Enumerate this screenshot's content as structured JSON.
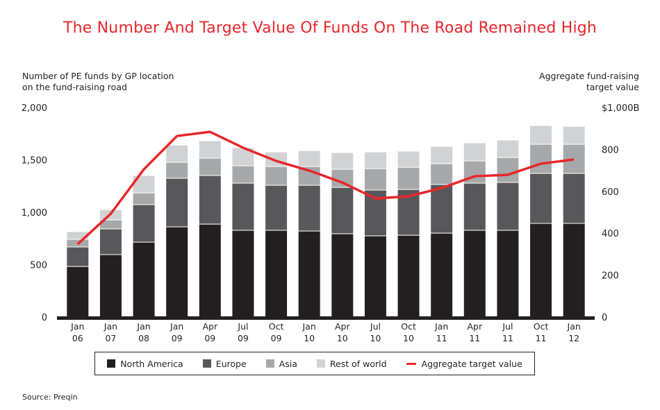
{
  "title": "The Number And Target Value Of Funds On The Road Remained High",
  "source": "Source: Preqin",
  "chart_data": {
    "type": "bar",
    "stacked": true,
    "title": "The Number And Target Value Of Funds On The Road Remained High",
    "ylabel_left_lines": [
      "Number of PE funds by GP location",
      "on the fund-raising road"
    ],
    "ylabel_right_lines": [
      "Aggregate fund-raising",
      "target value"
    ],
    "categories": [
      [
        "Jan",
        "06"
      ],
      [
        "Jan",
        "07"
      ],
      [
        "Jan",
        "08"
      ],
      [
        "Jan",
        "09"
      ],
      [
        "Apr",
        "09"
      ],
      [
        "Jul",
        "09"
      ],
      [
        "Oct",
        "09"
      ],
      [
        "Jan",
        "10"
      ],
      [
        "Apr",
        "10"
      ],
      [
        "Jul",
        "10"
      ],
      [
        "Oct",
        "10"
      ],
      [
        "Jan",
        "11"
      ],
      [
        "Apr",
        "11"
      ],
      [
        "Jul",
        "11"
      ],
      [
        "Oct",
        "11"
      ],
      [
        "Jan",
        "12"
      ]
    ],
    "ylim_left": [
      0,
      2000
    ],
    "yticks_left": [
      0,
      500,
      1000,
      1500,
      2000
    ],
    "ytick_labels_left": [
      "0",
      "500",
      "1,000",
      "1,500",
      "2,000"
    ],
    "ylim_right": [
      0,
      1000
    ],
    "yticks_right": [
      0,
      200,
      400,
      600,
      800,
      1000
    ],
    "ytick_labels_right": [
      "0",
      "200",
      "400",
      "600",
      "800",
      "$1,000B"
    ],
    "grid": false,
    "legend_position": "bottom",
    "series": [
      {
        "name": "North America",
        "type": "bar",
        "axis": "left",
        "color": "#231f20",
        "values": [
          483,
          596,
          715,
          861,
          887,
          828,
          828,
          821,
          795,
          775,
          781,
          801,
          828,
          828,
          894,
          894
        ]
      },
      {
        "name": "Europe",
        "type": "bar",
        "axis": "left",
        "color": "#58585a",
        "values": [
          186,
          245,
          358,
          464,
          464,
          450,
          430,
          437,
          443,
          437,
          437,
          464,
          450,
          457,
          477,
          477
        ]
      },
      {
        "name": "Asia",
        "type": "bar",
        "axis": "left",
        "color": "#a7a8aa",
        "values": [
          73,
          86,
          112,
          152,
          166,
          166,
          179,
          179,
          173,
          205,
          212,
          199,
          212,
          238,
          278,
          278
        ]
      },
      {
        "name": "Rest of world",
        "type": "bar",
        "axis": "left",
        "color": "#d1d2d4",
        "values": [
          73,
          99,
          166,
          165,
          165,
          172,
          139,
          152,
          159,
          159,
          153,
          165,
          172,
          166,
          179,
          172
        ]
      },
      {
        "name": "Aggregate target value",
        "type": "line",
        "axis": "right",
        "color": "#e8262b",
        "values": [
          348,
          493,
          705,
          864,
          884,
          808,
          745,
          699,
          642,
          566,
          576,
          616,
          672,
          679,
          732,
          752
        ]
      }
    ]
  }
}
